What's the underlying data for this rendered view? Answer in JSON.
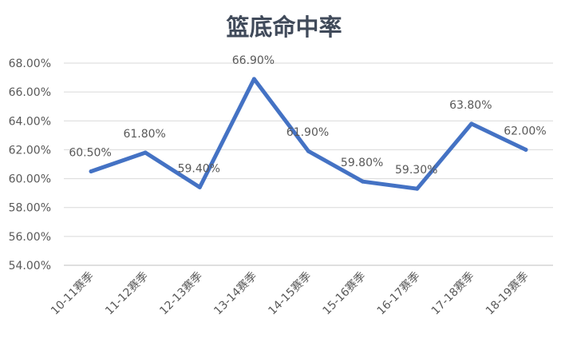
{
  "chart_data": {
    "type": "line",
    "title": "篮底命中率",
    "categories": [
      "10-11赛季",
      "11-12赛季",
      "12-13赛季",
      "13-14赛季",
      "14-15赛季",
      "15-16赛季",
      "16-17赛季",
      "17-18赛季",
      "18-19赛季"
    ],
    "series": [
      {
        "values": [
          60.5,
          61.8,
          59.4,
          66.9,
          61.9,
          59.8,
          59.3,
          63.8,
          62.0
        ]
      }
    ],
    "data_labels": [
      "60.50%",
      "61.80%",
      "59.40%",
      "66.90%",
      "61.90%",
      "59.80%",
      "59.30%",
      "63.80%",
      "62.00%"
    ],
    "y_ticks": [
      "54.00%",
      "56.00%",
      "58.00%",
      "60.00%",
      "62.00%",
      "64.00%",
      "66.00%",
      "68.00%"
    ],
    "ylim": [
      54,
      68
    ],
    "grid": true,
    "legend": "none",
    "xlabel": "",
    "ylabel": "",
    "colors": {
      "line": "#4472c4",
      "grid": "#d9d9d9",
      "text": "#595959",
      "title": "#404a5a"
    }
  }
}
